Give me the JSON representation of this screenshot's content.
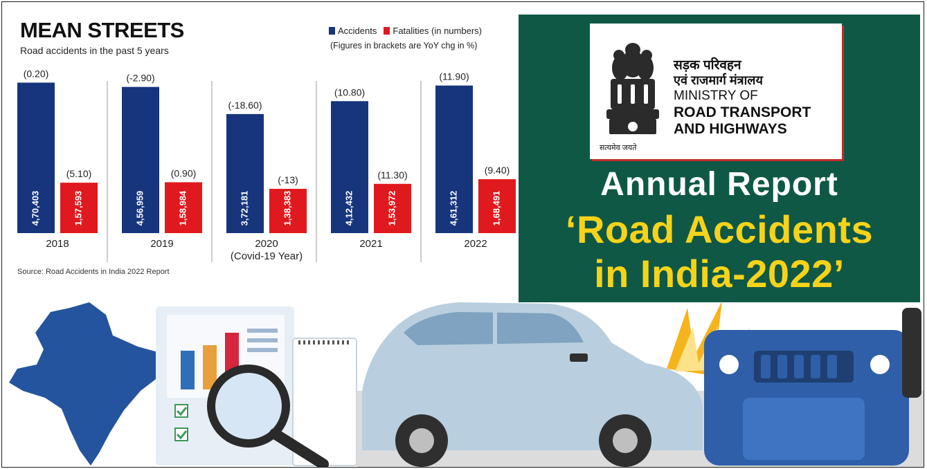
{
  "chart": {
    "title": "MEAN STREETS",
    "subtitle": "Road accidents in the past 5 years",
    "legend": {
      "accidents": "Accidents",
      "fatalities": "Fatalities (in numbers)",
      "note": "(Figures in brackets are YoY chg in %)"
    },
    "source": "Source: Road Accidents in India 2022 Report"
  },
  "chart_data": {
    "type": "bar",
    "categories": [
      "2018",
      "2019",
      "2020",
      "2021",
      "2022"
    ],
    "category_notes": [
      "",
      "",
      "(Covid-19 Year)",
      "",
      ""
    ],
    "series": [
      {
        "name": "Accidents",
        "color": "#17357c",
        "values": [
          470403,
          456959,
          372181,
          412432,
          461312
        ],
        "labels": [
          "4,70,403",
          "4,56,959",
          "3,72,181",
          "4,12,432",
          "4,61,312"
        ],
        "yoy_labels": [
          "(0.20)",
          "(-2.90)",
          "(-18.60)",
          "(10.80)",
          "(11.90)"
        ]
      },
      {
        "name": "Fatalities (in numbers)",
        "color": "#e0191e",
        "values": [
          157593,
          158984,
          138383,
          153972,
          168491
        ],
        "labels": [
          "1,57,593",
          "1,58,984",
          "1,38,383",
          "1,53,972",
          "1,68,491"
        ],
        "yoy_labels": [
          "(5.10)",
          "(0.90)",
          "(-13)",
          "(11.30)",
          "(9.40)"
        ]
      }
    ],
    "ylim": [
      0,
      480000
    ],
    "grid": false,
    "legend_position": "top-right"
  },
  "report": {
    "ministry_hindi_line1": "सड़क परिवहन",
    "ministry_hindi_line2": "एवं राजमार्ग मंत्रालय",
    "ministry_en_line1": "MINISTRY OF",
    "ministry_en_line2": "ROAD TRANSPORT",
    "ministry_en_line3": "AND HIGHWAYS",
    "motto": "सत्यमेव जयते",
    "heading": "Annual Report",
    "title_line1": "‘Road Accidents",
    "title_line2": "in India-2022’",
    "colors": {
      "banner": "#0f5846",
      "title": "#f6d31a",
      "heading": "#ffffff"
    }
  }
}
